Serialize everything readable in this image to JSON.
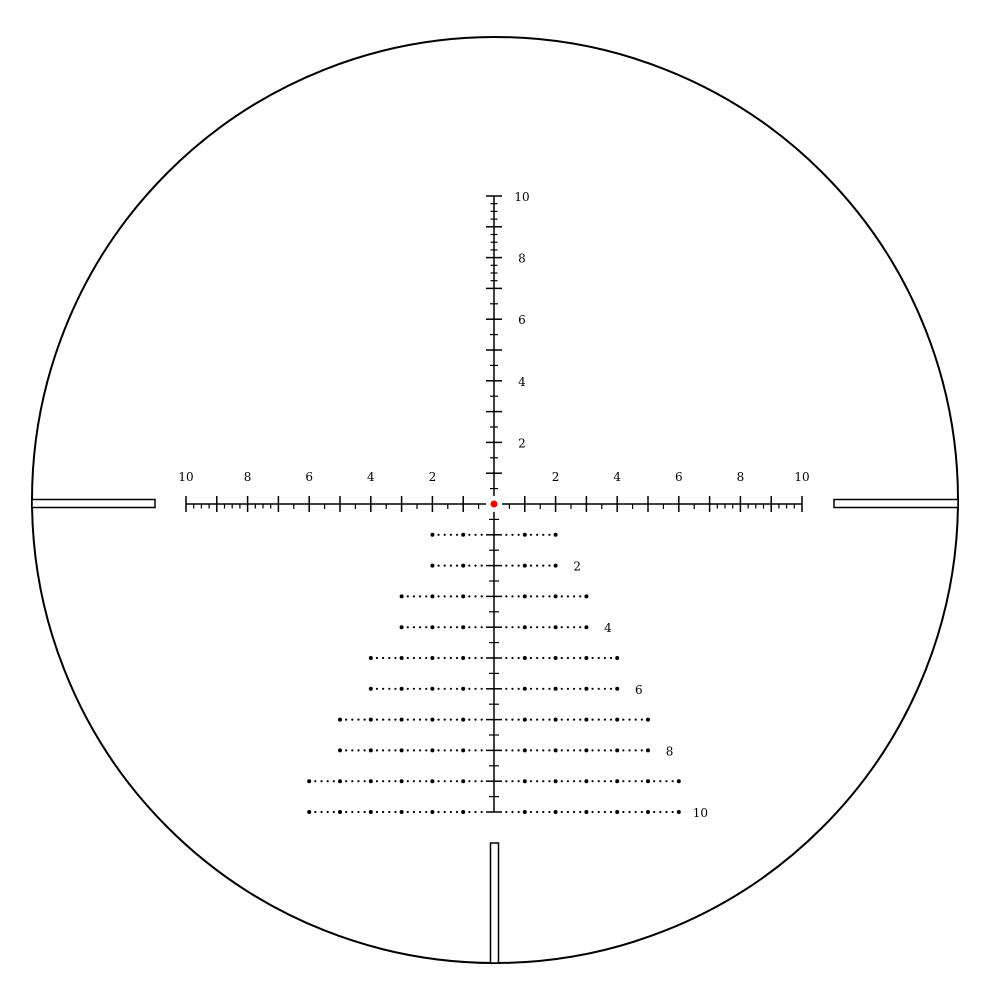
{
  "reticle": {
    "line_color": "#000000",
    "center_dot_color": "#ff0000",
    "horizontal_labels": [
      "2",
      "4",
      "6",
      "8",
      "10"
    ],
    "vertical_labels": [
      "2",
      "4",
      "6",
      "8",
      "10"
    ],
    "holdover_labels": [
      "2",
      "4",
      "6",
      "8",
      "10"
    ],
    "scale_extent_units": 10,
    "fine_subdivision_from_unit": 7,
    "holdover_rows": 10
  }
}
